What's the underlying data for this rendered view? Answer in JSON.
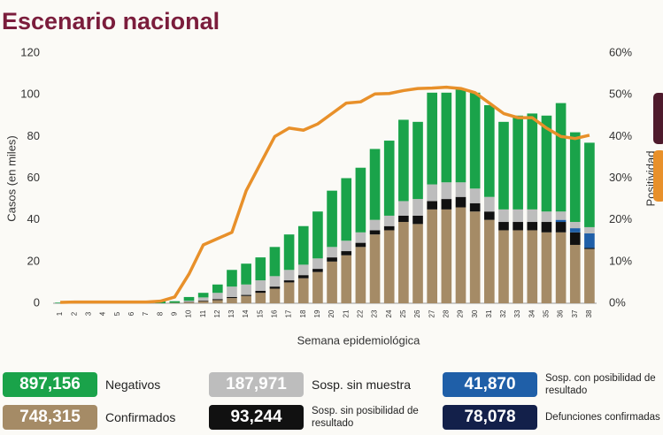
{
  "chart_data": {
    "type": "bar",
    "stacked": true,
    "title": "Escenario nacional",
    "y_label": "Casos (en miles)",
    "y2_label": "Positividad",
    "x_label": "Semana epidemiológica",
    "categories": [
      "1",
      "2",
      "3",
      "4",
      "5",
      "6",
      "7",
      "8",
      "9",
      "10",
      "11",
      "12",
      "13",
      "14",
      "15",
      "16",
      "17",
      "18",
      "19",
      "20",
      "21",
      "22",
      "23",
      "24",
      "25",
      "26",
      "27",
      "28",
      "29",
      "30",
      "31",
      "32",
      "33",
      "34",
      "35",
      "36",
      "37",
      "38"
    ],
    "ylim": [
      0,
      120
    ],
    "yticks": [
      0,
      20,
      40,
      60,
      80,
      100,
      120
    ],
    "y2lim": [
      0,
      60
    ],
    "y2ticks": [
      {
        "value": 0,
        "label": "0%"
      },
      {
        "value": 10,
        "label": "10%"
      },
      {
        "value": 20,
        "label": "20%"
      },
      {
        "value": 30,
        "label": "30%"
      },
      {
        "value": 40,
        "label": "40%"
      },
      {
        "value": 50,
        "label": "50%"
      },
      {
        "value": 60,
        "label": "60%"
      }
    ],
    "series": [
      {
        "name": "Confirmados",
        "color": "#a58b66",
        "total_label": "748,315",
        "values": [
          0,
          0,
          0,
          0,
          0,
          0,
          0,
          0,
          0.2,
          0.5,
          1,
          1.5,
          2.5,
          3.5,
          5,
          7,
          10,
          12,
          15,
          20,
          23,
          27,
          33,
          35,
          39,
          38,
          45,
          45,
          46,
          44,
          40,
          35,
          35,
          35,
          34,
          34,
          28,
          26
        ]
      },
      {
        "name": "Sosp. sin posibilidad de resultado",
        "color": "#111111",
        "total_label": "93,244",
        "values": [
          0,
          0,
          0,
          0,
          0,
          0,
          0,
          0,
          0,
          0.2,
          0.3,
          0.5,
          0.5,
          0.5,
          1,
          1,
          1,
          1.5,
          1.5,
          2,
          2,
          2,
          2,
          2,
          3,
          4,
          4,
          5,
          5,
          4,
          4,
          4,
          4,
          4,
          5,
          5,
          6,
          0.5
        ]
      },
      {
        "name": "Sosp. con posibilidad de resultado",
        "color": "#1f5fa8",
        "total_label": "41,870",
        "values": [
          0,
          0,
          0,
          0,
          0,
          0,
          0,
          0,
          0,
          0,
          0,
          0,
          0,
          0,
          0,
          0,
          0,
          0,
          0,
          0,
          0,
          0,
          0,
          0,
          0,
          0,
          0,
          0,
          0,
          0,
          0,
          0,
          0,
          0,
          0,
          1,
          2,
          7
        ]
      },
      {
        "name": "Sosp. sin muestra",
        "color": "#bdbdbd",
        "total_label": "187,971",
        "values": [
          0,
          0,
          0,
          0,
          0,
          0,
          0,
          0,
          0,
          0.5,
          1.5,
          3,
          5,
          5,
          5,
          5,
          5,
          5,
          5,
          5,
          5,
          5,
          5,
          5,
          7,
          8,
          8,
          8,
          7,
          7,
          7,
          6,
          6,
          6,
          5,
          4,
          3,
          3
        ]
      },
      {
        "name": "Negativos",
        "color": "#1aa34a",
        "total_label": "897,156",
        "values": [
          0.3,
          1,
          1,
          1,
          1,
          1,
          1,
          1,
          0.8,
          1.8,
          2.2,
          4,
          8,
          10,
          11,
          14,
          17,
          18.5,
          22.5,
          27,
          30,
          31,
          34,
          36,
          39,
          37,
          44,
          43,
          45,
          46,
          44,
          42,
          45,
          46,
          46,
          52,
          43,
          40.5
        ]
      },
      {
        "axis": "y2",
        "type": "line",
        "color": "#e8902a",
        "values": [
          0.2,
          0.3,
          0.3,
          0.3,
          0.3,
          0.3,
          0.3,
          0.5,
          1.5,
          7,
          14,
          15.5,
          17,
          27,
          33.5,
          40,
          42,
          41.5,
          43,
          45.5,
          48,
          48.3,
          50.2,
          50.3,
          51,
          51.5,
          51.6,
          51.8,
          51.5,
          50.5,
          48,
          45.5,
          44.5,
          44.5,
          42,
          40,
          39.5,
          40.3
        ]
      }
    ],
    "extra_summary": {
      "name": "Defunciones confirmadas",
      "color": "#13204a",
      "total_label": "78,078"
    }
  }
}
